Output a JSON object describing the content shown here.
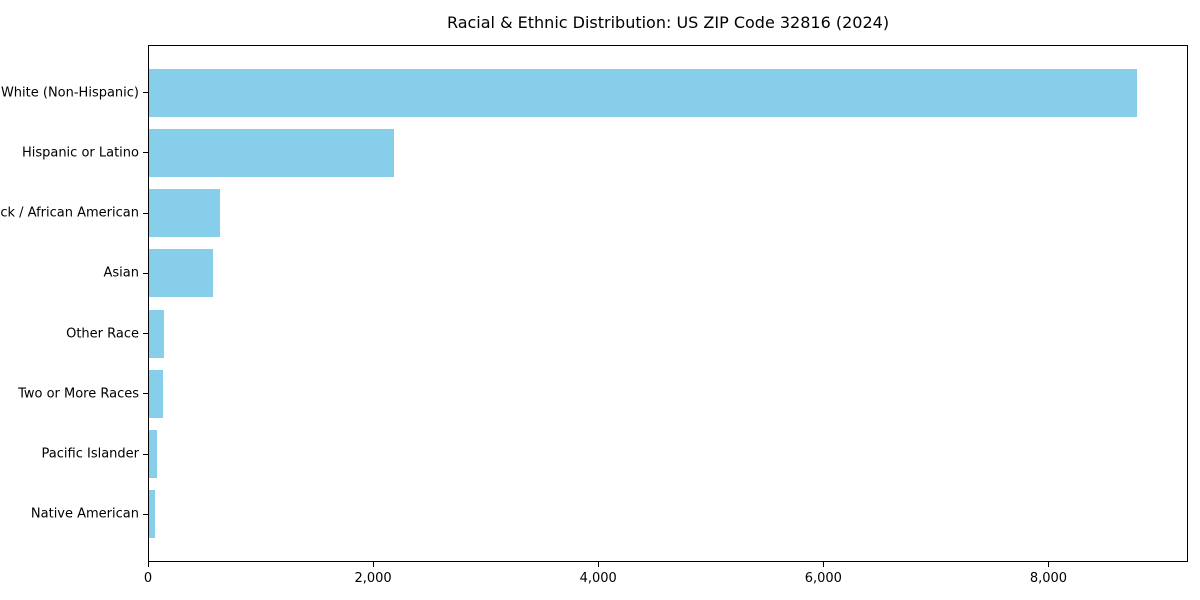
{
  "chart_data": {
    "type": "bar",
    "orientation": "horizontal",
    "title": "Racial & Ethnic Distribution: US ZIP Code 32816 (2024)",
    "categories": [
      "White (Non-Hispanic)",
      "Hispanic or Latino",
      "Black / African American",
      "Asian",
      "Other Race",
      "Two or More Races",
      "Pacific Islander",
      "Native American"
    ],
    "values": [
      8780,
      2180,
      630,
      570,
      133,
      125,
      68,
      53
    ],
    "xlabel": "",
    "ylabel": "",
    "xlim": [
      0,
      9240
    ],
    "xticks": [
      0,
      2000,
      4000,
      6000,
      8000
    ],
    "xtick_labels": [
      "0",
      "2,000",
      "4,000",
      "6,000",
      "8,000"
    ],
    "bar_color": "#87CEEB",
    "background_color": "#ffffff",
    "axis_color": "#000000",
    "grid": false,
    "legend": null
  }
}
